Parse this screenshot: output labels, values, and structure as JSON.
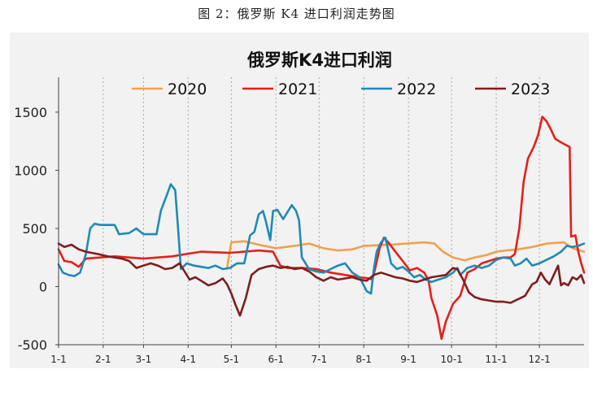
{
  "figure_caption": "图 2：俄罗斯 K4 进口利润走势图",
  "colors": {
    "background": "#f2f2f2",
    "grid": "#a6a6a6",
    "axis": "#404040"
  },
  "chart_data": {
    "type": "line",
    "title": "俄罗斯K4进口利润",
    "xlabel": "",
    "ylabel": "",
    "x_ticks": [
      "1-1",
      "2-1",
      "3-1",
      "4-1",
      "5-1",
      "6-1",
      "7-1",
      "8-1",
      "9-1",
      "10-1",
      "11-1",
      "12-1"
    ],
    "y_ticks": [
      -500,
      0,
      500,
      1000,
      1500
    ],
    "ylim": [
      -500,
      1800
    ],
    "xlim": [
      1,
      366
    ],
    "x_unit": "day of year",
    "grid": "vertical dashed",
    "legend_position": "top",
    "series": [
      {
        "name": "2020",
        "color": "#f0a050",
        "points": [
          [
            118,
            160
          ],
          [
            121,
            380
          ],
          [
            130,
            390
          ],
          [
            140,
            360
          ],
          [
            152,
            330
          ],
          [
            165,
            350
          ],
          [
            175,
            370
          ],
          [
            185,
            330
          ],
          [
            195,
            310
          ],
          [
            205,
            320
          ],
          [
            213,
            350
          ],
          [
            222,
            355
          ],
          [
            232,
            360
          ],
          [
            243,
            370
          ],
          [
            255,
            380
          ],
          [
            262,
            370
          ],
          [
            268,
            300
          ],
          [
            275,
            250
          ],
          [
            283,
            225
          ],
          [
            290,
            250
          ],
          [
            298,
            270
          ],
          [
            305,
            300
          ],
          [
            312,
            310
          ],
          [
            320,
            320
          ],
          [
            330,
            340
          ],
          [
            340,
            370
          ],
          [
            352,
            380
          ],
          [
            358,
            330
          ],
          [
            366,
            300
          ]
        ]
      },
      {
        "name": "2021",
        "color": "#e3201a",
        "points": [
          [
            1,
            320
          ],
          [
            5,
            220
          ],
          [
            10,
            210
          ],
          [
            15,
            170
          ],
          [
            20,
            240
          ],
          [
            30,
            250
          ],
          [
            40,
            260
          ],
          [
            50,
            250
          ],
          [
            60,
            240
          ],
          [
            70,
            250
          ],
          [
            80,
            260
          ],
          [
            90,
            280
          ],
          [
            100,
            300
          ],
          [
            110,
            295
          ],
          [
            120,
            290
          ],
          [
            130,
            300
          ],
          [
            140,
            310
          ],
          [
            150,
            300
          ],
          [
            155,
            180
          ],
          [
            160,
            160
          ],
          [
            170,
            160
          ],
          [
            180,
            150
          ],
          [
            190,
            120
          ],
          [
            200,
            100
          ],
          [
            210,
            80
          ],
          [
            217,
            70
          ],
          [
            219,
            60
          ],
          [
            221,
            160
          ],
          [
            224,
            330
          ],
          [
            227,
            420
          ],
          [
            230,
            380
          ],
          [
            235,
            300
          ],
          [
            240,
            220
          ],
          [
            245,
            140
          ],
          [
            250,
            160
          ],
          [
            255,
            120
          ],
          [
            258,
            50
          ],
          [
            260,
            -100
          ],
          [
            264,
            -250
          ],
          [
            267,
            -450
          ],
          [
            270,
            -300
          ],
          [
            275,
            -150
          ],
          [
            280,
            -80
          ],
          [
            285,
            120
          ],
          [
            290,
            150
          ],
          [
            295,
            200
          ],
          [
            300,
            220
          ],
          [
            305,
            240
          ],
          [
            310,
            250
          ],
          [
            315,
            250
          ],
          [
            318,
            280
          ],
          [
            321,
            500
          ],
          [
            324,
            900
          ],
          [
            327,
            1100
          ],
          [
            331,
            1200
          ],
          [
            334,
            1300
          ],
          [
            337,
            1460
          ],
          [
            340,
            1420
          ],
          [
            343,
            1350
          ],
          [
            346,
            1270
          ],
          [
            350,
            1240
          ],
          [
            353,
            1220
          ],
          [
            356,
            1200
          ],
          [
            357,
            430
          ],
          [
            360,
            440
          ],
          [
            362,
            300
          ],
          [
            364,
            200
          ],
          [
            366,
            120
          ]
        ]
      },
      {
        "name": "2022",
        "color": "#1f8ab5",
        "points": [
          [
            1,
            190
          ],
          [
            4,
            120
          ],
          [
            8,
            100
          ],
          [
            12,
            90
          ],
          [
            16,
            120
          ],
          [
            20,
            280
          ],
          [
            23,
            500
          ],
          [
            26,
            540
          ],
          [
            30,
            530
          ],
          [
            35,
            530
          ],
          [
            40,
            530
          ],
          [
            43,
            450
          ],
          [
            50,
            460
          ],
          [
            55,
            500
          ],
          [
            60,
            450
          ],
          [
            65,
            450
          ],
          [
            69,
            450
          ],
          [
            72,
            650
          ],
          [
            76,
            780
          ],
          [
            79,
            880
          ],
          [
            82,
            830
          ],
          [
            84,
            500
          ],
          [
            86,
            150
          ],
          [
            90,
            200
          ],
          [
            95,
            180
          ],
          [
            100,
            170
          ],
          [
            105,
            160
          ],
          [
            110,
            180
          ],
          [
            115,
            150
          ],
          [
            120,
            160
          ],
          [
            125,
            200
          ],
          [
            130,
            200
          ],
          [
            134,
            440
          ],
          [
            137,
            470
          ],
          [
            140,
            620
          ],
          [
            143,
            650
          ],
          [
            145,
            560
          ],
          [
            148,
            400
          ],
          [
            150,
            650
          ],
          [
            153,
            660
          ],
          [
            157,
            580
          ],
          [
            160,
            640
          ],
          [
            163,
            700
          ],
          [
            166,
            650
          ],
          [
            168,
            570
          ],
          [
            170,
            250
          ],
          [
            175,
            150
          ],
          [
            180,
            130
          ],
          [
            185,
            120
          ],
          [
            190,
            150
          ],
          [
            195,
            180
          ],
          [
            200,
            200
          ],
          [
            205,
            120
          ],
          [
            210,
            80
          ],
          [
            213,
            10
          ],
          [
            215,
            -40
          ],
          [
            218,
            -60
          ],
          [
            220,
            150
          ],
          [
            222,
            300
          ],
          [
            225,
            380
          ],
          [
            228,
            420
          ],
          [
            232,
            200
          ],
          [
            236,
            150
          ],
          [
            240,
            170
          ],
          [
            244,
            130
          ],
          [
            248,
            80
          ],
          [
            252,
            100
          ],
          [
            256,
            60
          ],
          [
            260,
            40
          ],
          [
            265,
            60
          ],
          [
            270,
            80
          ],
          [
            275,
            120
          ],
          [
            278,
            160
          ],
          [
            280,
            100
          ],
          [
            285,
            160
          ],
          [
            290,
            180
          ],
          [
            295,
            160
          ],
          [
            300,
            180
          ],
          [
            305,
            230
          ],
          [
            310,
            250
          ],
          [
            315,
            240
          ],
          [
            318,
            180
          ],
          [
            322,
            200
          ],
          [
            326,
            240
          ],
          [
            330,
            180
          ],
          [
            335,
            200
          ],
          [
            340,
            230
          ],
          [
            345,
            260
          ],
          [
            350,
            300
          ],
          [
            354,
            350
          ],
          [
            358,
            340
          ],
          [
            362,
            350
          ],
          [
            366,
            370
          ]
        ]
      },
      {
        "name": "2023",
        "color": "#7f1d1d",
        "points": [
          [
            1,
            370
          ],
          [
            5,
            340
          ],
          [
            10,
            360
          ],
          [
            15,
            320
          ],
          [
            20,
            300
          ],
          [
            28,
            280
          ],
          [
            35,
            260
          ],
          [
            40,
            250
          ],
          [
            45,
            240
          ],
          [
            50,
            220
          ],
          [
            55,
            160
          ],
          [
            60,
            180
          ],
          [
            65,
            200
          ],
          [
            70,
            180
          ],
          [
            75,
            150
          ],
          [
            80,
            160
          ],
          [
            85,
            200
          ],
          [
            88,
            140
          ],
          [
            92,
            60
          ],
          [
            96,
            80
          ],
          [
            100,
            50
          ],
          [
            105,
            10
          ],
          [
            110,
            30
          ],
          [
            115,
            70
          ],
          [
            118,
            20
          ],
          [
            121,
            -60
          ],
          [
            124,
            -160
          ],
          [
            127,
            -250
          ],
          [
            131,
            -100
          ],
          [
            135,
            100
          ],
          [
            140,
            150
          ],
          [
            145,
            170
          ],
          [
            150,
            180
          ],
          [
            155,
            160
          ],
          [
            160,
            170
          ],
          [
            165,
            150
          ],
          [
            170,
            160
          ],
          [
            175,
            130
          ],
          [
            180,
            80
          ],
          [
            185,
            50
          ],
          [
            190,
            80
          ],
          [
            195,
            60
          ],
          [
            200,
            70
          ],
          [
            205,
            80
          ],
          [
            210,
            60
          ],
          [
            215,
            50
          ],
          [
            220,
            100
          ],
          [
            225,
            120
          ],
          [
            230,
            100
          ],
          [
            235,
            80
          ],
          [
            240,
            70
          ],
          [
            245,
            50
          ],
          [
            250,
            40
          ],
          [
            255,
            60
          ],
          [
            260,
            80
          ],
          [
            265,
            90
          ],
          [
            270,
            100
          ],
          [
            275,
            160
          ],
          [
            278,
            150
          ],
          [
            282,
            60
          ],
          [
            286,
            -50
          ],
          [
            290,
            -90
          ],
          [
            295,
            -110
          ],
          [
            300,
            -120
          ],
          [
            305,
            -130
          ],
          [
            310,
            -130
          ],
          [
            315,
            -140
          ],
          [
            320,
            -110
          ],
          [
            325,
            -80
          ],
          [
            330,
            20
          ],
          [
            333,
            40
          ],
          [
            336,
            120
          ],
          [
            339,
            60
          ],
          [
            342,
            20
          ],
          [
            345,
            100
          ],
          [
            348,
            180
          ],
          [
            350,
            10
          ],
          [
            352,
            30
          ],
          [
            355,
            10
          ],
          [
            358,
            80
          ],
          [
            361,
            60
          ],
          [
            364,
            100
          ],
          [
            366,
            30
          ]
        ]
      }
    ]
  }
}
